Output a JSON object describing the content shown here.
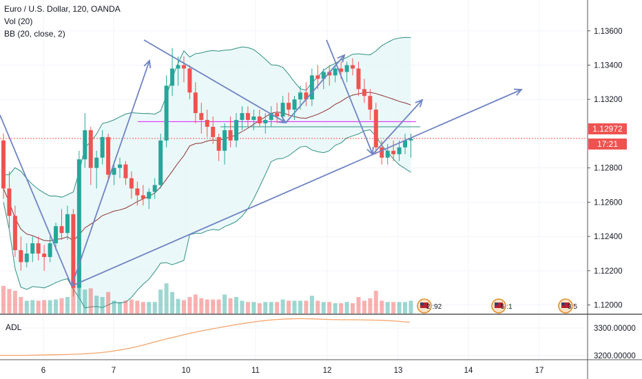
{
  "legend": {
    "symbol": "Euro / U.S. Dollar, 120, OANDA",
    "vol": "Vol (20)",
    "bb": "BB (20, close, 2)"
  },
  "adl_label": "ADL",
  "current_price": "1.12972",
  "countdown": "17:21",
  "event_badges": [
    "2 :92",
    "5 :1",
    "3 5"
  ],
  "colors": {
    "up": "#26a69a",
    "down": "#ef5350",
    "bb_band": "#2f8f83",
    "bb_basis": "#8b2f2f",
    "trend": "#6f83c4",
    "magenta": "#e040fb",
    "adl": "#f4a46b",
    "price_line": "#ef5350"
  },
  "chart_data": [
    {
      "type": "candlestick",
      "title": "Euro / U.S. Dollar, 120, OANDA",
      "x_ticks": [
        "6",
        "7",
        "10",
        "11",
        "12",
        "13",
        "14",
        "17"
      ],
      "y_ticks": [
        "1.13600",
        "1.13400",
        "1.13200",
        "1.12800",
        "1.12600",
        "1.12400",
        "1.12200",
        "1.12000"
      ],
      "ylim": [
        1.1195,
        1.1378
      ],
      "candles": [
        [
          1.1296,
          1.13,
          1.1262,
          1.1268
        ],
        [
          1.1268,
          1.1278,
          1.1245,
          1.1252
        ],
        [
          1.1252,
          1.1258,
          1.1228,
          1.1232
        ],
        [
          1.1232,
          1.124,
          1.122,
          1.1225
        ],
        [
          1.1225,
          1.1236,
          1.1222,
          1.123
        ],
        [
          1.123,
          1.124,
          1.1225,
          1.1236
        ],
        [
          1.1236,
          1.124,
          1.1226,
          1.123
        ],
        [
          1.123,
          1.1235,
          1.122,
          1.1228
        ],
        [
          1.1228,
          1.124,
          1.1225,
          1.1236
        ],
        [
          1.1236,
          1.1248,
          1.1232,
          1.1246
        ],
        [
          1.1246,
          1.1256,
          1.1238,
          1.1242
        ],
        [
          1.1242,
          1.1258,
          1.1238,
          1.1253
        ],
        [
          1.1253,
          1.1256,
          1.1205,
          1.121
        ],
        [
          1.121,
          1.129,
          1.1205,
          1.1285
        ],
        [
          1.1285,
          1.1312,
          1.128,
          1.1302
        ],
        [
          1.1302,
          1.1304,
          1.127,
          1.128
        ],
        [
          1.128,
          1.129,
          1.1268,
          1.1286
        ],
        [
          1.1286,
          1.1302,
          1.1282,
          1.1298
        ],
        [
          1.1298,
          1.13,
          1.1272,
          1.1276
        ],
        [
          1.1276,
          1.1284,
          1.127,
          1.128
        ],
        [
          1.128,
          1.1286,
          1.1274,
          1.1282
        ],
        [
          1.1282,
          1.1284,
          1.127,
          1.1274
        ],
        [
          1.1274,
          1.1278,
          1.1262,
          1.1268
        ],
        [
          1.1268,
          1.1272,
          1.1258,
          1.1264
        ],
        [
          1.1264,
          1.127,
          1.1258,
          1.1262
        ],
        [
          1.1262,
          1.1268,
          1.1256,
          1.1266
        ],
        [
          1.1266,
          1.1274,
          1.1262,
          1.127
        ],
        [
          1.127,
          1.13,
          1.1268,
          1.1296
        ],
        [
          1.1296,
          1.1334,
          1.1292,
          1.1328
        ],
        [
          1.1328,
          1.135,
          1.1322,
          1.1338
        ],
        [
          1.1338,
          1.1345,
          1.1328,
          1.134
        ],
        [
          1.134,
          1.1345,
          1.133,
          1.1338
        ],
        [
          1.1338,
          1.134,
          1.132,
          1.1324
        ],
        [
          1.1324,
          1.133,
          1.1306,
          1.1312
        ],
        [
          1.1312,
          1.1318,
          1.13,
          1.1308
        ],
        [
          1.1308,
          1.1314,
          1.1298,
          1.1304
        ],
        [
          1.1304,
          1.131,
          1.1294,
          1.1298
        ],
        [
          1.1298,
          1.13,
          1.1284,
          1.129
        ],
        [
          1.129,
          1.1306,
          1.1282,
          1.1302
        ],
        [
          1.1302,
          1.131,
          1.1292,
          1.1296
        ],
        [
          1.1296,
          1.1312,
          1.1292,
          1.1308
        ],
        [
          1.1308,
          1.1316,
          1.1302,
          1.1312
        ],
        [
          1.1312,
          1.1316,
          1.1304,
          1.1308
        ],
        [
          1.1308,
          1.1314,
          1.1302,
          1.131
        ],
        [
          1.131,
          1.1314,
          1.1304,
          1.1306
        ],
        [
          1.1306,
          1.1312,
          1.13,
          1.1308
        ],
        [
          1.1308,
          1.1316,
          1.1304,
          1.1312
        ],
        [
          1.1312,
          1.1318,
          1.1306,
          1.131
        ],
        [
          1.131,
          1.1322,
          1.1306,
          1.1318
        ],
        [
          1.1318,
          1.1324,
          1.131,
          1.1314
        ],
        [
          1.1314,
          1.1322,
          1.1308,
          1.132
        ],
        [
          1.132,
          1.1328,
          1.1314,
          1.1324
        ],
        [
          1.1324,
          1.133,
          1.1316,
          1.132
        ],
        [
          1.132,
          1.1338,
          1.1316,
          1.1334
        ],
        [
          1.1334,
          1.134,
          1.1326,
          1.1332
        ],
        [
          1.1332,
          1.1338,
          1.1326,
          1.1336
        ],
        [
          1.1336,
          1.134,
          1.1328,
          1.1334
        ],
        [
          1.1334,
          1.134,
          1.133,
          1.1338
        ],
        [
          1.1338,
          1.1342,
          1.1332,
          1.1336
        ],
        [
          1.1336,
          1.1342,
          1.133,
          1.134
        ],
        [
          1.134,
          1.1344,
          1.1334,
          1.1338
        ],
        [
          1.1338,
          1.1342,
          1.1322,
          1.1326
        ],
        [
          1.1326,
          1.1332,
          1.1318,
          1.1322
        ],
        [
          1.1322,
          1.1326,
          1.1308,
          1.1314
        ],
        [
          1.1314,
          1.1318,
          1.1288,
          1.1292
        ],
        [
          1.1292,
          1.1296,
          1.1282,
          1.1286
        ],
        [
          1.1286,
          1.1294,
          1.1282,
          1.129
        ],
        [
          1.129,
          1.1296,
          1.1284,
          1.1288
        ],
        [
          1.1288,
          1.1296,
          1.1284,
          1.1292
        ],
        [
          1.1292,
          1.13,
          1.1288,
          1.1296
        ],
        [
          1.1296,
          1.13,
          1.1286,
          1.1297
        ]
      ]
    },
    {
      "type": "line",
      "title": "ADL",
      "y_ticks": [
        "3300.00000",
        "3200.00000"
      ],
      "ylim": [
        3185,
        3345
      ]
    }
  ]
}
